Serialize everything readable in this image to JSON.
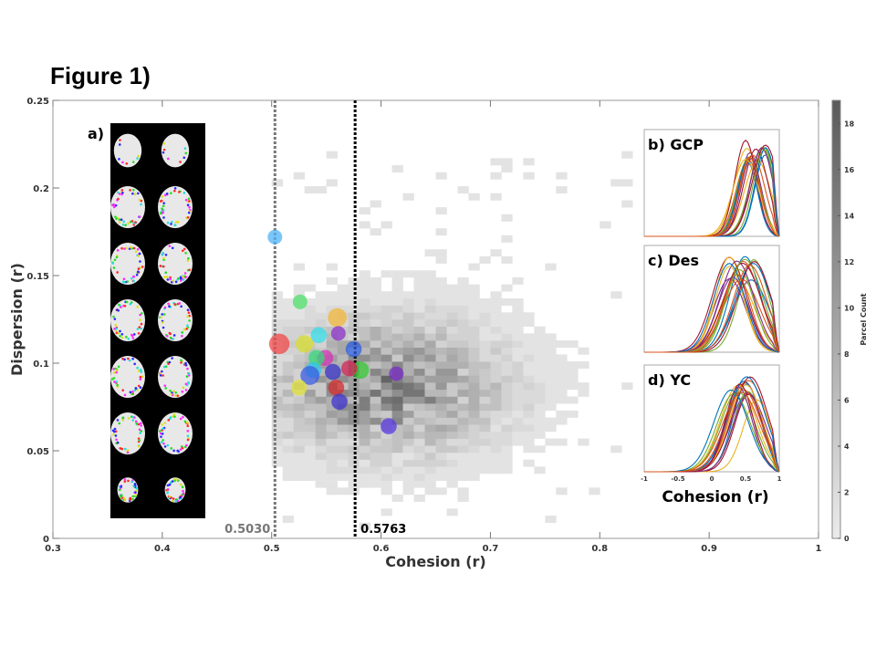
{
  "figure_title": "Figure 1)",
  "chart_data": {
    "type": "scatter",
    "xlabel": "Cohesion (r)",
    "ylabel": "Dispersion (r)",
    "xlim": [
      0.3,
      1.0
    ],
    "ylim": [
      0,
      0.25
    ],
    "xticks": [
      "0.3",
      "0.4",
      "0.5",
      "0.6",
      "0.7",
      "0.8",
      "0.9",
      "1"
    ],
    "xtick_values": [
      0.3,
      0.4,
      0.5,
      0.6,
      0.7,
      0.8,
      0.9,
      1.0
    ],
    "yticks": [
      "0",
      "0.05",
      "0.1",
      "0.15",
      "0.2",
      "0.25"
    ],
    "ytick_values": [
      0,
      0.05,
      0.1,
      0.15,
      0.2,
      0.25
    ],
    "vlines": [
      {
        "label": "0.5030",
        "value": 0.503,
        "color": "#777777"
      },
      {
        "label": "0.5763",
        "value": 0.5763,
        "color": "#000000"
      }
    ],
    "heatmap": {
      "description": "2D histogram of parcel cohesion vs dispersion",
      "x_bin": 0.01,
      "y_bin": 0.004,
      "center": [
        0.6,
        0.085
      ],
      "spread": [
        0.07,
        0.025
      ],
      "x_range": [
        0.5,
        0.83
      ],
      "y_range": [
        0.005,
        0.22
      ],
      "max_count": 19
    },
    "points": [
      {
        "x": 0.503,
        "y": 0.172,
        "color": "#4fb3f5",
        "size": 1.0
      },
      {
        "x": 0.507,
        "y": 0.111,
        "color": "#f04848",
        "size": 1.4
      },
      {
        "x": 0.526,
        "y": 0.135,
        "color": "#4ee06a",
        "size": 1.0
      },
      {
        "x": 0.56,
        "y": 0.126,
        "color": "#f2b73a",
        "size": 1.3
      },
      {
        "x": 0.561,
        "y": 0.117,
        "color": "#8a32c8",
        "size": 1.0
      },
      {
        "x": 0.543,
        "y": 0.116,
        "color": "#35dce8",
        "size": 1.1
      },
      {
        "x": 0.53,
        "y": 0.111,
        "color": "#d6de2c",
        "size": 1.2
      },
      {
        "x": 0.575,
        "y": 0.108,
        "color": "#2f5fe0",
        "size": 1.1
      },
      {
        "x": 0.549,
        "y": 0.103,
        "color": "#d434b4",
        "size": 1.1
      },
      {
        "x": 0.541,
        "y": 0.103,
        "color": "#34d87a",
        "size": 1.1
      },
      {
        "x": 0.581,
        "y": 0.096,
        "color": "#34c834",
        "size": 1.2
      },
      {
        "x": 0.571,
        "y": 0.097,
        "color": "#d42858",
        "size": 1.1
      },
      {
        "x": 0.614,
        "y": 0.094,
        "color": "#7a2ec8",
        "size": 1.0
      },
      {
        "x": 0.556,
        "y": 0.095,
        "color": "#3a34c8",
        "size": 1.1
      },
      {
        "x": 0.538,
        "y": 0.096,
        "color": "#2fc8ec",
        "size": 1.1
      },
      {
        "x": 0.535,
        "y": 0.093,
        "color": "#3a5ce0",
        "size": 1.3
      },
      {
        "x": 0.525,
        "y": 0.086,
        "color": "#dfe03a",
        "size": 1.1
      },
      {
        "x": 0.559,
        "y": 0.086,
        "color": "#d42c2c",
        "size": 1.1
      },
      {
        "x": 0.562,
        "y": 0.078,
        "color": "#4034d0",
        "size": 1.1
      },
      {
        "x": 0.607,
        "y": 0.064,
        "color": "#5a3ae0",
        "size": 1.1
      }
    ],
    "colorbar": {
      "label": "Parcel Count",
      "ticks": [
        "0",
        "2",
        "4",
        "6",
        "8",
        "10",
        "12",
        "14",
        "16",
        "18"
      ],
      "tick_values": [
        0,
        2,
        4,
        6,
        8,
        10,
        12,
        14,
        16,
        18
      ],
      "max": 19
    },
    "insets": [
      {
        "label": "b) GCP",
        "peak_range": [
          0.5,
          0.8
        ],
        "spread": 0.18
      },
      {
        "label": "c) Des",
        "peak_range": [
          0.25,
          0.65
        ],
        "spread": 0.25
      },
      {
        "label": "d) YC",
        "peak_range": [
          0.25,
          0.7
        ],
        "spread": 0.25
      }
    ],
    "inset_xticks": [
      "-1",
      "-0.5",
      "0",
      "0.5",
      "1"
    ],
    "inset_xlabel": "Cohesion (r)",
    "inset_colors": [
      "#0072bd",
      "#d95319",
      "#edb120",
      "#7e2f8e",
      "#77ac30",
      "#a2142f"
    ]
  },
  "panel_a_label": "a)"
}
